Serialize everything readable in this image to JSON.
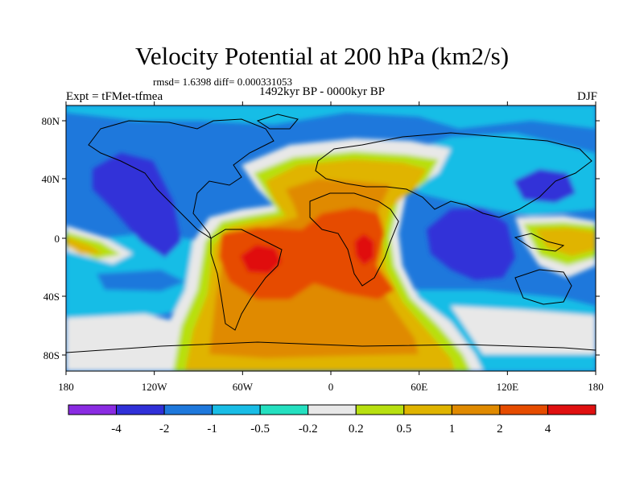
{
  "title": "Velocity Potential at 200 hPa (km2/s)",
  "stats_text": "rmsd= 1.6398 diff= 0.000331053",
  "left_label": "Expt = tFMet-tfmea",
  "center_label": "1492kyr BP - 0000kyr BP",
  "right_label": "DJF",
  "lat_labels": [
    "80N",
    "40N",
    "0",
    "40S",
    "80S"
  ],
  "lon_labels": [
    "180",
    "120W",
    "60W",
    "0",
    "60E",
    "120E",
    "180"
  ],
  "colorbar": {
    "colors": [
      "#8a2be2",
      "#3030d8",
      "#1e78dc",
      "#19bde6",
      "#24e0c0",
      "#e8e8e8",
      "#b8e010",
      "#e0b400",
      "#e08a00",
      "#e64c00",
      "#e01010"
    ],
    "labels": [
      "-4",
      "-2",
      "-1",
      "-0.5",
      "-0.2",
      "0.2",
      "0.5",
      "1",
      "2",
      "4"
    ]
  }
}
